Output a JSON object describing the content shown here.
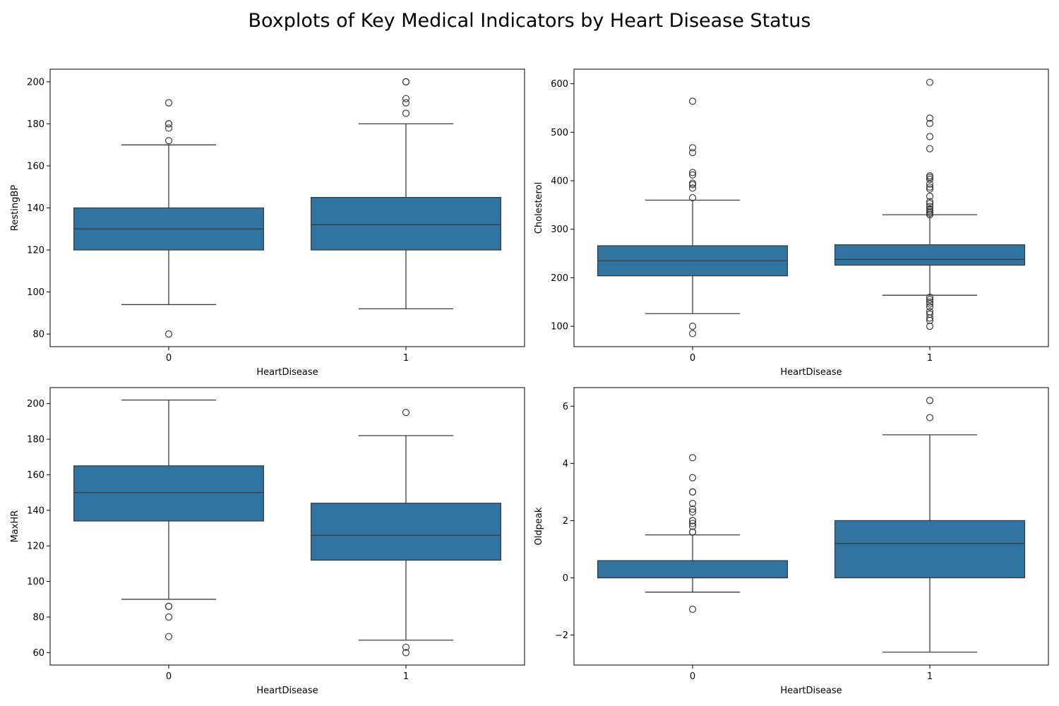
{
  "title": "Boxplots of Key Medical Indicators by Heart Disease Status",
  "colors": {
    "box": "#3274a1",
    "line": "#3d3d3d",
    "axis": "#000000"
  },
  "chart_data": [
    {
      "type": "box",
      "xlabel": "HeartDisease",
      "ylabel": "RestingBP",
      "categories": [
        "0",
        "1"
      ],
      "ylim": [
        74,
        206
      ],
      "yticks": [
        80,
        100,
        120,
        140,
        160,
        180,
        200
      ],
      "ytick_labels": [
        "80",
        "100",
        "120",
        "140",
        "160",
        "180",
        "200"
      ],
      "boxes": [
        {
          "category": "0",
          "whislo": 94,
          "q1": 120,
          "med": 130,
          "q3": 140,
          "whishi": 170,
          "fliers": [
            172,
            178,
            180,
            180,
            190,
            80
          ]
        },
        {
          "category": "1",
          "whislo": 92,
          "q1": 120,
          "med": 132,
          "q3": 145,
          "whishi": 180,
          "fliers": [
            185,
            190,
            192,
            200,
            200
          ]
        }
      ]
    },
    {
      "type": "box",
      "xlabel": "HeartDisease",
      "ylabel": "Cholesterol",
      "categories": [
        "0",
        "1"
      ],
      "ylim": [
        58,
        630
      ],
      "yticks": [
        100,
        200,
        300,
        400,
        500,
        600
      ],
      "ytick_labels": [
        "100",
        "200",
        "300",
        "400",
        "500",
        "600"
      ],
      "boxes": [
        {
          "category": "0",
          "whislo": 126,
          "q1": 204,
          "med": 235,
          "q3": 266,
          "whishi": 360,
          "fliers": [
            365,
            385,
            392,
            395,
            412,
            417,
            458,
            468,
            564,
            100,
            85
          ]
        },
        {
          "category": "1",
          "whislo": 164,
          "q1": 226,
          "med": 238,
          "q3": 268,
          "whishi": 330,
          "fliers": [
            330,
            333,
            336,
            339,
            342,
            347,
            353,
            357,
            368,
            383,
            387,
            393,
            403,
            407,
            410,
            466,
            491,
            518,
            529,
            603,
            160,
            155,
            150,
            146,
            140,
            130,
            125,
            117,
            112,
            100
          ]
        }
      ]
    },
    {
      "type": "box",
      "xlabel": "HeartDisease",
      "ylabel": "MaxHR",
      "categories": [
        "0",
        "1"
      ],
      "ylim": [
        53,
        209
      ],
      "yticks": [
        60,
        80,
        100,
        120,
        140,
        160,
        180,
        200
      ],
      "ytick_labels": [
        "60",
        "80",
        "100",
        "120",
        "140",
        "160",
        "180",
        "200"
      ],
      "boxes": [
        {
          "category": "0",
          "whislo": 90,
          "q1": 134,
          "med": 150,
          "q3": 165,
          "whishi": 202,
          "fliers": [
            86,
            86,
            80,
            69
          ]
        },
        {
          "category": "1",
          "whislo": 67,
          "q1": 112,
          "med": 126,
          "q3": 144,
          "whishi": 182,
          "fliers": [
            195,
            63,
            60
          ]
        }
      ]
    },
    {
      "type": "box",
      "xlabel": "HeartDisease",
      "ylabel": "Oldpeak",
      "categories": [
        "0",
        "1"
      ],
      "ylim": [
        -3.05,
        6.65
      ],
      "yticks": [
        -2,
        0,
        2,
        4,
        6
      ],
      "ytick_labels": [
        "−2",
        "0",
        "2",
        "4",
        "6"
      ],
      "boxes": [
        {
          "category": "0",
          "whislo": -0.5,
          "q1": 0.0,
          "med": 0.0,
          "q3": 0.6,
          "whishi": 1.5,
          "fliers": [
            1.6,
            1.6,
            1.8,
            1.9,
            2.0,
            2.0,
            2.3,
            2.4,
            2.6,
            3.0,
            3.0,
            3.5,
            4.2,
            -1.1
          ]
        },
        {
          "category": "1",
          "whislo": -2.6,
          "q1": 0.0,
          "med": 1.2,
          "q3": 2.0,
          "whishi": 5.0,
          "fliers": [
            5.6,
            6.2
          ]
        }
      ]
    }
  ]
}
